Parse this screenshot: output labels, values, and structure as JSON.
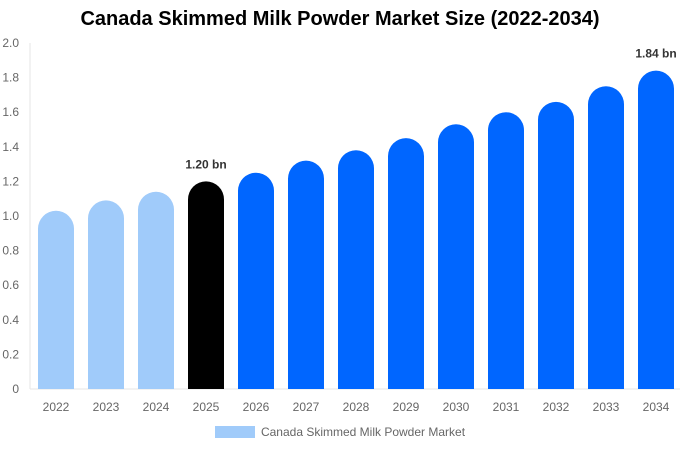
{
  "chart_data": {
    "type": "bar",
    "title": "Canada Skimmed Milk Powder Market Size (2022-2034)",
    "xlabel": "",
    "ylabel": "",
    "ylim": [
      0,
      2.0
    ],
    "yticks": [
      "0",
      "0.2",
      "0.4",
      "0.6",
      "0.8",
      "1.0",
      "1.2",
      "1.4",
      "1.6",
      "1.8",
      "2.0"
    ],
    "categories": [
      "2022",
      "2023",
      "2024",
      "2025",
      "2026",
      "2027",
      "2028",
      "2029",
      "2030",
      "2031",
      "2032",
      "2033",
      "2034"
    ],
    "series": [
      {
        "name": "Canada Skimmed Milk Powder Market",
        "values": [
          1.03,
          1.09,
          1.14,
          1.2,
          1.25,
          1.32,
          1.38,
          1.45,
          1.53,
          1.6,
          1.66,
          1.75,
          1.84
        ]
      }
    ],
    "data_labels": {
      "2025": "1.20 bn",
      "2034": "1.84 bn"
    },
    "bar_colors": {
      "historical": "#a0cbfa",
      "current": "#000000",
      "forecast": "#0066ff"
    },
    "grid": false,
    "legend_position": "bottom"
  }
}
